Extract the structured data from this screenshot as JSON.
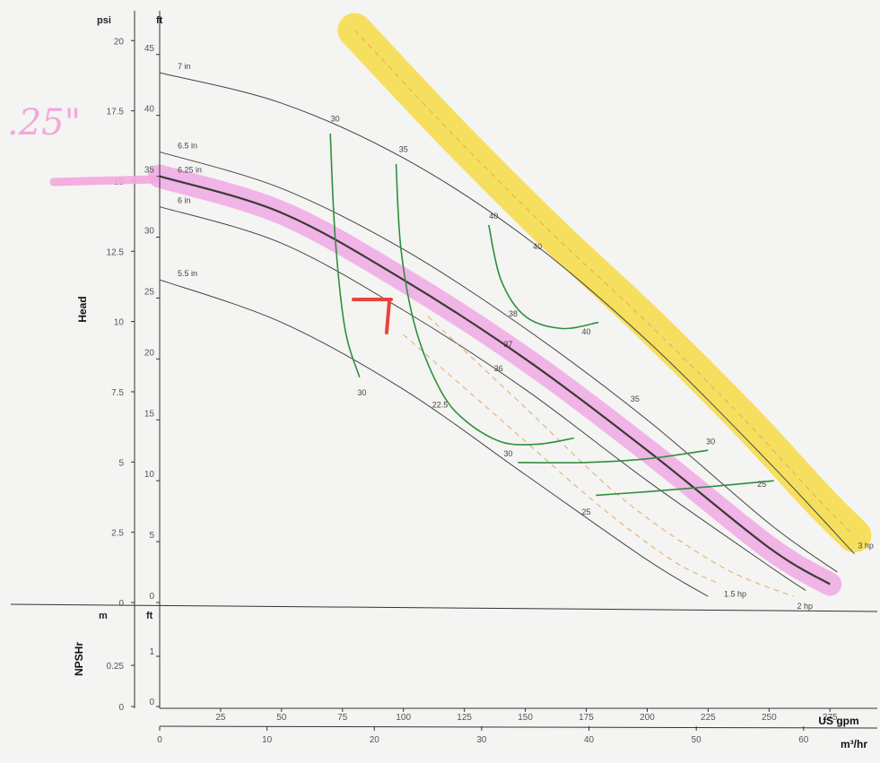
{
  "chart_data": {
    "type": "line",
    "title": "",
    "xlabel": "US gpm",
    "xlabel_secondary": "m³/hr",
    "ylabel": "Head",
    "ylabel_lower": "NPSHr",
    "axes": {
      "x_gpm": {
        "unit": "US gpm",
        "ticks": [
          25,
          50,
          75,
          100,
          125,
          150,
          175,
          200,
          225,
          250,
          275
        ],
        "range": [
          0,
          290
        ]
      },
      "x_m3hr": {
        "unit": "m³/hr",
        "ticks": [
          0,
          10,
          20,
          30,
          40,
          50,
          60
        ]
      },
      "y_head_ft": {
        "unit": "ft",
        "ticks": [
          0,
          5,
          10,
          15,
          20,
          25,
          30,
          35,
          40,
          45
        ],
        "range": [
          0,
          48
        ]
      },
      "y_head_psi": {
        "unit": "psi",
        "ticks": [
          0,
          2.5,
          5,
          7.5,
          10,
          12.5,
          15,
          17.5,
          20
        ],
        "tick_labels": [
          "0",
          "2.5",
          "5",
          "7.5",
          "10",
          "12.5",
          "15",
          "17.5",
          "20"
        ]
      },
      "y_npsh_ft": {
        "unit": "ft",
        "ticks": [
          0,
          1
        ]
      },
      "y_npsh_m": {
        "unit": "m",
        "ticks": [
          0,
          0.25
        ],
        "tick_labels": [
          "0",
          "0.25"
        ]
      }
    },
    "series": [
      {
        "name": "7 in",
        "label": "7 in",
        "x": [
          0,
          50,
          100,
          150,
          200,
          250,
          285
        ],
        "y": [
          43.5,
          41,
          36.5,
          30,
          21.5,
          11.5,
          4
        ]
      },
      {
        "name": "6.5 in",
        "label": "6.5 in",
        "x": [
          0,
          50,
          100,
          150,
          200,
          250,
          278
        ],
        "y": [
          37,
          34,
          29,
          22.5,
          15,
          6.5,
          2.5
        ]
      },
      {
        "name": "6.25 in",
        "label": "6.25 in",
        "x": [
          0,
          50,
          100,
          150,
          200,
          250,
          275
        ],
        "y": [
          35,
          32,
          26.5,
          20,
          12.5,
          4.5,
          1.5
        ]
      },
      {
        "name": "6 in",
        "label": "6 in",
        "x": [
          0,
          50,
          100,
          150,
          200,
          250,
          265
        ],
        "y": [
          32.5,
          29.5,
          24,
          17.5,
          10,
          3,
          1
        ]
      },
      {
        "name": "5.5 in",
        "label": "5.5 in",
        "x": [
          0,
          50,
          100,
          150,
          200,
          225
        ],
        "y": [
          26.5,
          23,
          17.5,
          10.5,
          3.5,
          0.5
        ]
      }
    ],
    "efficiency_curves": [
      {
        "label": "30",
        "x": [
          70,
          72,
          76,
          82
        ],
        "y": [
          38.5,
          30,
          22.5,
          18.5
        ]
      },
      {
        "label": "35",
        "x": [
          97,
          99,
          105,
          115,
          125,
          140,
          155,
          170
        ],
        "y": [
          36,
          29,
          22.5,
          17.5,
          15,
          13.2,
          13,
          13.5
        ]
      },
      {
        "label": "40",
        "x": [
          135,
          140,
          150,
          165,
          180
        ],
        "y": [
          31,
          26.5,
          23.5,
          22.5,
          23
        ]
      },
      {
        "label": "30",
        "x": [
          147,
          175,
          200,
          225
        ],
        "y": [
          11.5,
          11.5,
          11.8,
          12.5
        ]
      },
      {
        "label": "25",
        "x": [
          179,
          200,
          225,
          252
        ],
        "y": [
          8.8,
          9.1,
          9.5,
          10
        ]
      }
    ],
    "efficiency_labels": [
      "30",
      "35",
      "40",
      "40",
      "40",
      "38",
      "37",
      "36",
      "35",
      "30",
      "30",
      "30",
      "25",
      "25",
      "22.5"
    ],
    "power_curves": [
      {
        "label": "1.5 hp",
        "x": [
          100,
          140,
          180,
          210,
          230
        ],
        "y": [
          22,
          15,
          8,
          3.5,
          1.5
        ]
      },
      {
        "label": "2 hp",
        "x": [
          110,
          150,
          190,
          230,
          260
        ],
        "y": [
          23.5,
          16,
          8.5,
          3,
          0.5
        ]
      },
      {
        "label": "3 hp",
        "x": [
          80,
          120,
          160,
          200,
          240,
          270,
          285
        ],
        "y": [
          47,
          38.5,
          30.5,
          23,
          15,
          8.5,
          5.5
        ]
      }
    ],
    "annotations": [
      {
        "type": "handwritten",
        "text": ".25\""
      }
    ],
    "grid": false,
    "legend": "none"
  }
}
